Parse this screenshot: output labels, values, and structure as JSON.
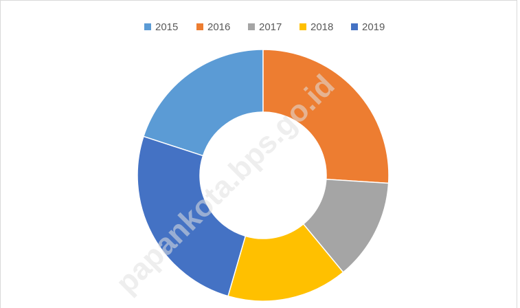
{
  "chart_data": {
    "type": "donut",
    "categories": [
      "2015",
      "2016",
      "2017",
      "2018",
      "2019"
    ],
    "values": [
      20,
      26,
      13,
      15.5,
      25.5
    ],
    "colors": [
      "#5b9bd5",
      "#ed7d31",
      "#a5a5a5",
      "#ffc000",
      "#4472c4"
    ],
    "legend": "top",
    "watermark": "papankota.bps.go.id"
  }
}
